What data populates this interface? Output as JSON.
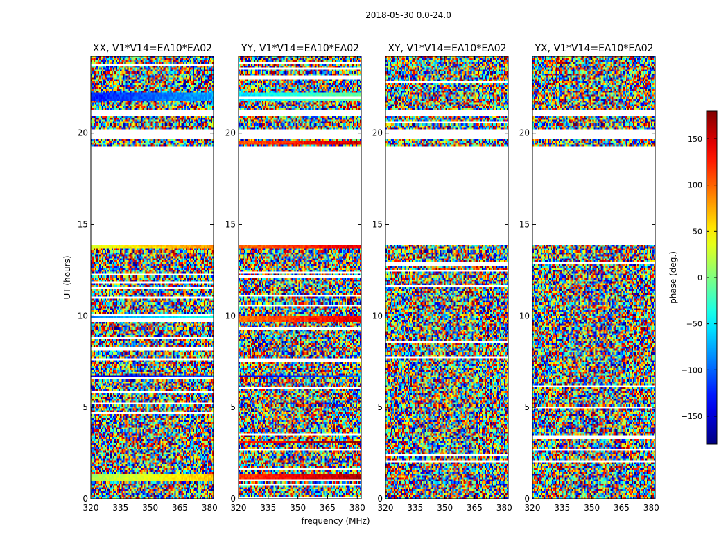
{
  "figure": {
    "suptitle": "2018-05-30 0.0-24.0",
    "xlabel": "frequency (MHz)",
    "ylabel": "UT (hours)"
  },
  "chart_data": {
    "type": "heatmap",
    "x_range": [
      320,
      382
    ],
    "xticks": [
      320,
      335,
      350,
      365,
      380
    ],
    "y_range": [
      0,
      24.2
    ],
    "yticks": [
      0,
      5,
      10,
      15,
      20
    ],
    "panels": [
      {
        "title": "XX, V1*V14=EA10*EA02",
        "pol": "XX"
      },
      {
        "title": "YY, V1*V14=EA10*EA02",
        "pol": "YY"
      },
      {
        "title": "XY, V1*V14=EA10*EA02",
        "pol": "XY"
      },
      {
        "title": "YX, V1*V14=EA10*EA02",
        "pol": "YX"
      }
    ],
    "blank_ut_ranges": [
      [
        13.85,
        19.3
      ],
      [
        19.72,
        20.25
      ],
      [
        20.98,
        21.3
      ]
    ],
    "coherent_bands": [
      {
        "pol": "XX",
        "ut": [
          0.95,
          1.35
        ],
        "phase": 40
      },
      {
        "pol": "XX",
        "ut": [
          9.7,
          9.95
        ],
        "phase": -60
      },
      {
        "pol": "XX",
        "ut": [
          13.65,
          13.85
        ],
        "phase": 60
      },
      {
        "pol": "XX",
        "ut": [
          21.8,
          22.2
        ],
        "phase": -100
      },
      {
        "pol": "XX",
        "ut": [
          6.6,
          6.75
        ],
        "phase": -130
      },
      {
        "pol": "YY",
        "ut": [
          0.95,
          1.35
        ],
        "phase": 140
      },
      {
        "pol": "YY",
        "ut": [
          9.7,
          9.95
        ],
        "phase": 120
      },
      {
        "pol": "YY",
        "ut": [
          13.65,
          13.85
        ],
        "phase": 120
      },
      {
        "pol": "YY",
        "ut": [
          19.35,
          19.6
        ],
        "phase": 130
      },
      {
        "pol": "YY",
        "ut": [
          21.8,
          22.2
        ],
        "phase": -30
      },
      {
        "pol": "YY",
        "ut": [
          3.0,
          3.2
        ],
        "phase": 150
      },
      {
        "pol": "YY",
        "ut": [
          6.6,
          6.75
        ],
        "phase": -120
      }
    ],
    "colorbar": {
      "label": "phase (deg.)",
      "range": [
        -180,
        180
      ],
      "ticks": [
        -150,
        -100,
        -50,
        0,
        50,
        100,
        150
      ],
      "tick_labels": [
        "−150",
        "−100",
        "−50",
        "0",
        "50",
        "100",
        "150"
      ],
      "colormap": "jet"
    }
  }
}
